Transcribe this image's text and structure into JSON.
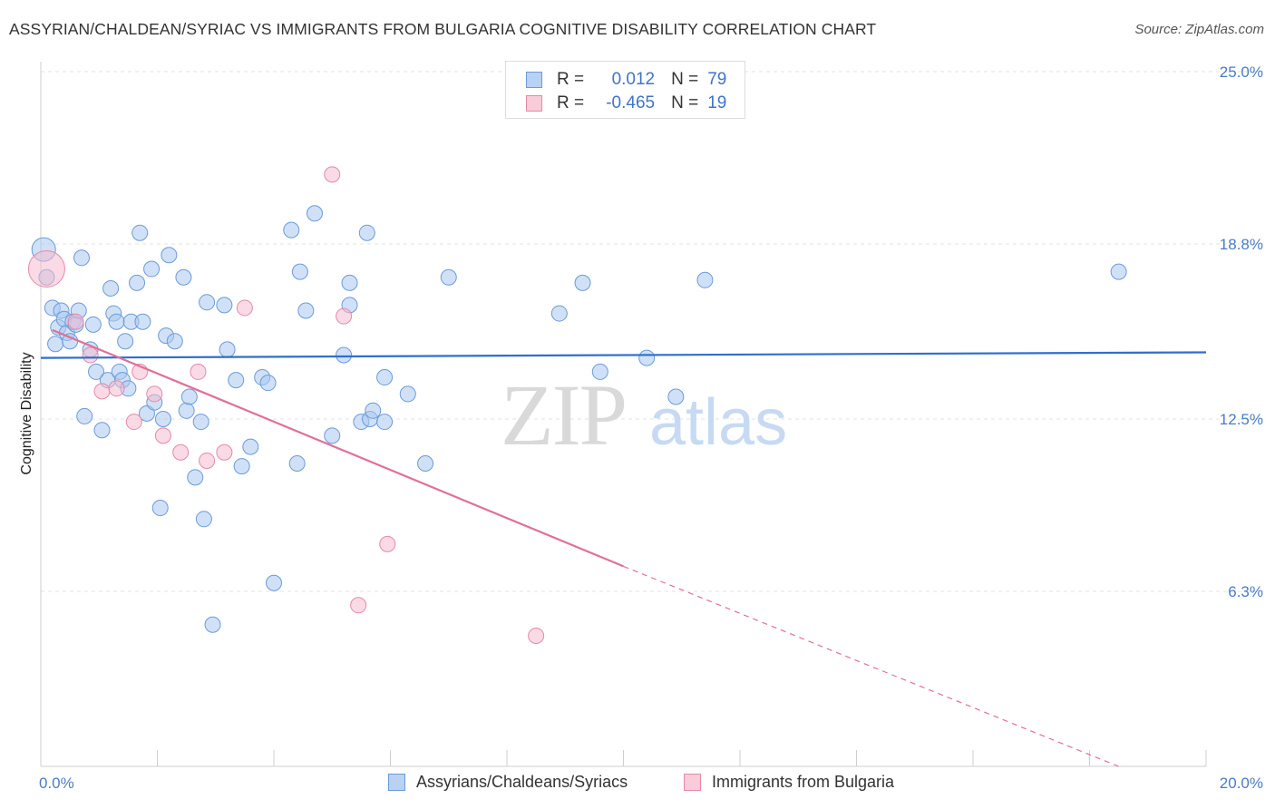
{
  "title": "ASSYRIAN/CHALDEAN/SYRIAC VS IMMIGRANTS FROM BULGARIA COGNITIVE DISABILITY CORRELATION CHART",
  "source": "Source: ZipAtlas.com",
  "watermark": {
    "zip": "ZIP",
    "atlas": "atlas"
  },
  "legend": {
    "rows": [
      {
        "r_label": "R =",
        "r_value": "0.012",
        "n_label": "N =",
        "n_value": "79"
      },
      {
        "r_label": "R =",
        "r_value": "-0.465",
        "n_label": "N =",
        "n_value": "19"
      }
    ]
  },
  "bottom_legend": {
    "series1": "Assyrians/Chaldeans/Syriacs",
    "series2": "Immigrants from Bulgaria"
  },
  "colors": {
    "blue_fill": "#aac8f0",
    "blue_stroke": "#6b9bd9",
    "blue_line": "#2f6fcc",
    "pink_fill": "#f6bccd",
    "pink_stroke": "#e58aa8",
    "pink_line": "#e0709a"
  },
  "chart_data": {
    "type": "scatter",
    "title": "ASSYRIAN/CHALDEAN/SYRIAC VS IMMIGRANTS FROM BULGARIA COGNITIVE DISABILITY CORRELATION CHART",
    "xlabel": "",
    "ylabel": "Cognitive Disability",
    "xlim": [
      0,
      20
    ],
    "ylim": [
      0,
      25
    ],
    "x_tick_labels": [
      "0.0%",
      "20.0%"
    ],
    "y_ticks": [
      6.3,
      12.5,
      18.8,
      25.0
    ],
    "y_tick_labels": [
      "6.3%",
      "12.5%",
      "18.8%",
      "25.0%"
    ],
    "grid": true,
    "legend_position": "top-center",
    "series": [
      {
        "name": "Assyrians/Chaldeans/Syriacs",
        "points": [
          [
            0.05,
            18.6
          ],
          [
            0.1,
            17.6
          ],
          [
            0.2,
            16.5
          ],
          [
            0.25,
            15.2
          ],
          [
            0.3,
            15.8
          ],
          [
            0.35,
            16.4
          ],
          [
            0.4,
            16.1
          ],
          [
            0.45,
            15.6
          ],
          [
            0.5,
            15.3
          ],
          [
            0.55,
            16.0
          ],
          [
            0.6,
            15.9
          ],
          [
            0.65,
            16.4
          ],
          [
            0.7,
            18.3
          ],
          [
            0.75,
            12.6
          ],
          [
            0.85,
            15.0
          ],
          [
            0.9,
            15.9
          ],
          [
            0.95,
            14.2
          ],
          [
            1.05,
            12.1
          ],
          [
            1.15,
            13.9
          ],
          [
            1.2,
            17.2
          ],
          [
            1.25,
            16.3
          ],
          [
            1.3,
            16.0
          ],
          [
            1.35,
            14.2
          ],
          [
            1.4,
            13.9
          ],
          [
            1.45,
            15.3
          ],
          [
            1.5,
            13.6
          ],
          [
            1.55,
            16.0
          ],
          [
            1.65,
            17.4
          ],
          [
            1.7,
            19.2
          ],
          [
            1.75,
            16.0
          ],
          [
            1.82,
            12.7
          ],
          [
            1.9,
            17.9
          ],
          [
            1.95,
            13.1
          ],
          [
            2.05,
            9.3
          ],
          [
            2.1,
            12.5
          ],
          [
            2.15,
            15.5
          ],
          [
            2.2,
            18.4
          ],
          [
            2.3,
            15.3
          ],
          [
            2.45,
            17.6
          ],
          [
            2.5,
            12.8
          ],
          [
            2.55,
            13.3
          ],
          [
            2.65,
            10.4
          ],
          [
            2.75,
            12.4
          ],
          [
            2.8,
            8.9
          ],
          [
            2.85,
            16.7
          ],
          [
            2.95,
            5.1
          ],
          [
            3.15,
            16.6
          ],
          [
            3.2,
            15.0
          ],
          [
            3.35,
            13.9
          ],
          [
            3.45,
            10.8
          ],
          [
            3.6,
            11.5
          ],
          [
            3.8,
            14.0
          ],
          [
            3.9,
            13.8
          ],
          [
            4.0,
            6.6
          ],
          [
            4.3,
            19.3
          ],
          [
            4.4,
            10.9
          ],
          [
            4.45,
            17.8
          ],
          [
            4.55,
            16.4
          ],
          [
            4.7,
            19.9
          ],
          [
            5.0,
            11.9
          ],
          [
            5.2,
            14.8
          ],
          [
            5.3,
            17.4
          ],
          [
            5.3,
            16.6
          ],
          [
            5.5,
            12.4
          ],
          [
            5.6,
            19.2
          ],
          [
            5.65,
            12.5
          ],
          [
            5.7,
            12.8
          ],
          [
            5.9,
            14.0
          ],
          [
            5.9,
            12.4
          ],
          [
            6.3,
            13.4
          ],
          [
            6.6,
            10.9
          ],
          [
            7.0,
            17.6
          ],
          [
            8.9,
            16.3
          ],
          [
            9.3,
            17.4
          ],
          [
            9.6,
            14.2
          ],
          [
            10.4,
            14.7
          ],
          [
            10.9,
            13.3
          ],
          [
            11.4,
            17.5
          ],
          [
            18.5,
            17.8
          ]
        ],
        "trend": {
          "x": [
            0,
            20
          ],
          "y": [
            14.7,
            14.9
          ]
        }
      },
      {
        "name": "Immigrants from Bulgaria",
        "points": [
          [
            0.1,
            17.9
          ],
          [
            0.6,
            16.0
          ],
          [
            0.85,
            14.8
          ],
          [
            1.05,
            13.5
          ],
          [
            1.3,
            13.6
          ],
          [
            1.6,
            12.4
          ],
          [
            1.7,
            14.2
          ],
          [
            1.95,
            13.4
          ],
          [
            2.1,
            11.9
          ],
          [
            2.4,
            11.3
          ],
          [
            2.7,
            14.2
          ],
          [
            2.85,
            11.0
          ],
          [
            3.15,
            11.3
          ],
          [
            3.5,
            16.5
          ],
          [
            5.0,
            21.3
          ],
          [
            5.2,
            16.2
          ],
          [
            5.45,
            5.8
          ],
          [
            5.95,
            8.0
          ],
          [
            8.5,
            4.7
          ]
        ],
        "trend": {
          "x": [
            0.2,
            10.0
          ],
          "y": [
            15.7,
            7.2
          ]
        },
        "trend_extension": {
          "x": [
            10.0,
            18.5
          ],
          "y": [
            7.2,
            0.0
          ]
        }
      }
    ]
  }
}
